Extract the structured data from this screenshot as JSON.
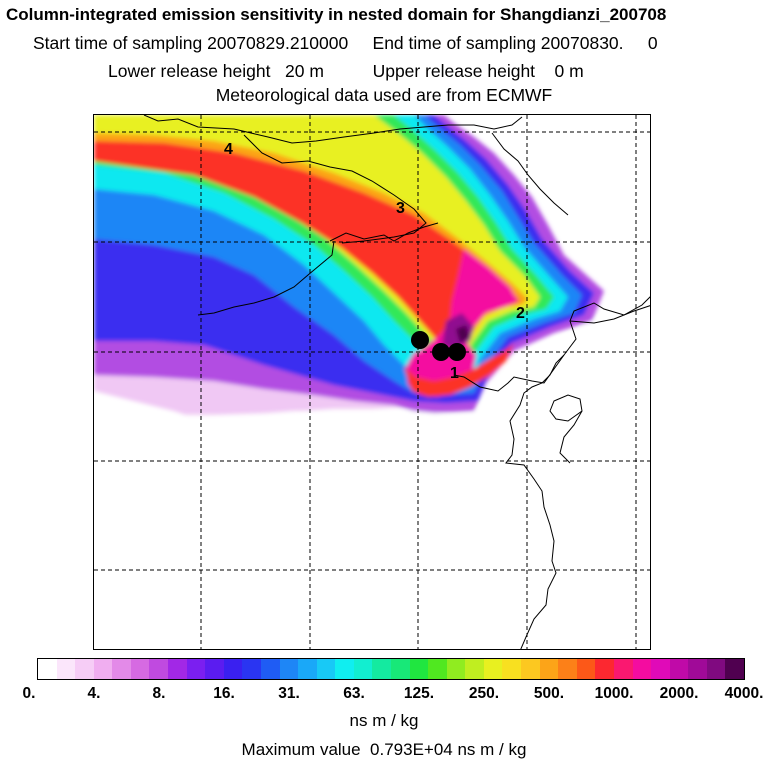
{
  "header": {
    "title": "Column-integrated emission sensitivity in nested domain for Shangdianzi_200708",
    "sampling": "Start time of sampling 20070829.210000     End time of sampling 20070830.     0",
    "release": "Lower release height   20 m          Upper release height    0 m",
    "met": "Meteorological data used are from ECMWF"
  },
  "map": {
    "hour_labels": [
      "1",
      "2",
      "3",
      "4"
    ],
    "colors": {
      "coast": "#000000",
      "grid": "#000000",
      "marker": "#000000"
    }
  },
  "colorbar": {
    "colors": [
      "#ffffff",
      "#fbe6fb",
      "#f6cdf6",
      "#f0aef0",
      "#e38ae8",
      "#d66ae2",
      "#c04ae0",
      "#a228e6",
      "#7b1ff0",
      "#5b1cf0",
      "#3a20f0",
      "#2a35f2",
      "#1f5cf4",
      "#1e86f6",
      "#1aa8f8",
      "#18c9f6",
      "#10eef0",
      "#12eed0",
      "#14eaa0",
      "#18e878",
      "#20e640",
      "#50e820",
      "#90ec20",
      "#c0ee20",
      "#e8f020",
      "#f8e020",
      "#fcc820",
      "#fca418",
      "#fc8018",
      "#fc5818",
      "#fc2830",
      "#fa1870",
      "#f40ca0",
      "#e00ab8",
      "#c00aa8",
      "#a00a98",
      "#800a80",
      "#500050"
    ],
    "tick_labels": [
      "0.",
      "4.",
      "8.",
      "16.",
      "31.",
      "63.",
      "125.",
      "250.",
      "500.",
      "1000.",
      "2000.",
      "4000."
    ],
    "units": "ns m / kg",
    "max_value_text": "Maximum value  0.793E+04 ns m / kg"
  }
}
